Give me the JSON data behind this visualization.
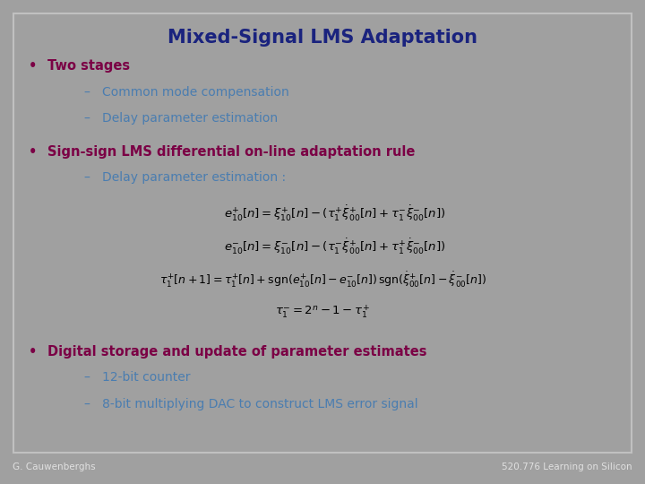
{
  "title": "Mixed-Signal LMS Adaptation",
  "title_color": "#1a237e",
  "title_fontsize": 15,
  "background_color": "#a0a0a0",
  "slide_bg": "#ffffff",
  "border_color": "#c0c0c0",
  "bullet_color": "#7b0045",
  "sub_color": "#4a7db0",
  "footer_left": "G. Cauwenberghs",
  "footer_right": "520.776 Learning on Silicon",
  "footer_color": "#e0e0e0",
  "footer_fontsize": 7.5,
  "footer_bg": "#8a8a8a"
}
